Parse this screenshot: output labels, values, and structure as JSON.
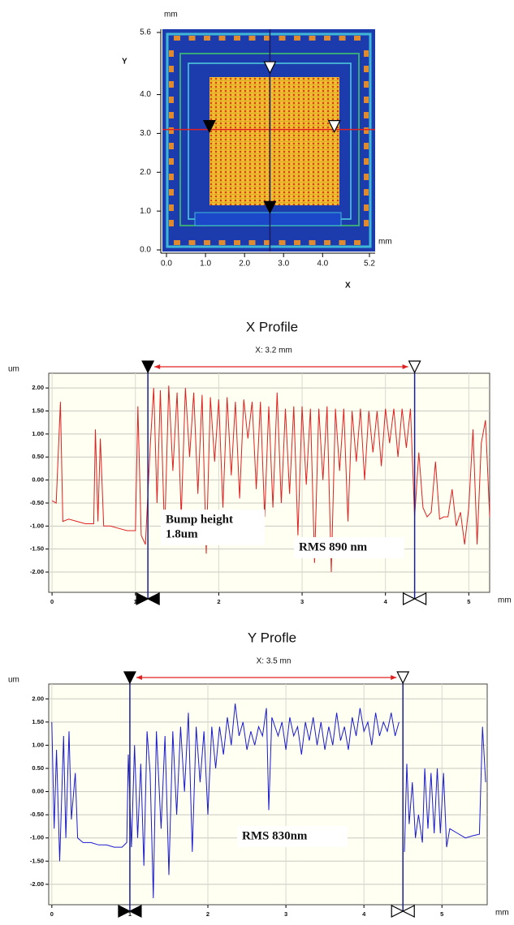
{
  "chart_data": [
    {
      "type": "image",
      "y_unit": "mm",
      "y_label": "Y",
      "x_unit": "mm",
      "x_label": "X",
      "xlim": [
        0,
        5.2
      ],
      "ylim": [
        0,
        5.6
      ],
      "xticks": [
        {
          "value": 0,
          "label": "0.0"
        },
        {
          "value": 1,
          "label": "1.0"
        },
        {
          "value": 2,
          "label": "2.0"
        },
        {
          "value": 3,
          "label": "3.0"
        },
        {
          "value": 4,
          "label": "4.0"
        },
        {
          "value": 5.2,
          "label": "5.2"
        }
      ],
      "yticks": [
        {
          "value": 0,
          "label": "0.0"
        },
        {
          "value": 1,
          "label": "1.0"
        },
        {
          "value": 2,
          "label": "2.0"
        },
        {
          "value": 3,
          "label": "3.0"
        },
        {
          "value": 4,
          "label": "4.0"
        },
        {
          "value": 5.6,
          "label": "5.6"
        }
      ],
      "crosshair_x": 2.65,
      "crosshair_y": 3.1,
      "cursor_x": [
        1.1,
        4.3
      ],
      "cursor_y": [
        1.1,
        4.7
      ]
    },
    {
      "type": "line",
      "title": "X Profile",
      "annotation": "X: 3.2 mm",
      "y_unit": "um",
      "x_unit": "mm",
      "xlim": [
        -0.04,
        5.25
      ],
      "ylim": [
        -2.44,
        2.32
      ],
      "xticks": [
        0,
        1,
        2,
        3,
        4,
        5
      ],
      "yticks": [
        {
          "value": 2,
          "label": "2.00"
        },
        {
          "value": 1.5,
          "label": "1.50"
        },
        {
          "value": 1,
          "label": "1.00"
        },
        {
          "value": 0.5,
          "label": "0.50"
        },
        {
          "value": 0,
          "label": "0.00"
        },
        {
          "value": -0.5,
          "label": "-0.50"
        },
        {
          "value": -1,
          "label": "-1.00"
        },
        {
          "value": -1.5,
          "label": "-1.50"
        },
        {
          "value": -2,
          "label": "-2.00"
        }
      ],
      "grid": true,
      "cursors": [
        1.15,
        4.35
      ],
      "text_boxes": [
        {
          "lines": [
            "Bump height",
            "1.8um"
          ]
        },
        {
          "lines": [
            "RMS 890 nm"
          ]
        }
      ],
      "x": [
        0,
        0.05,
        0.1,
        0.13,
        0.2,
        0.3,
        0.4,
        0.5,
        0.52,
        0.55,
        0.58,
        0.62,
        0.7,
        0.8,
        0.9,
        1,
        1.03,
        1.07,
        1.12,
        1.18,
        1.22,
        1.26,
        1.3,
        1.35,
        1.4,
        1.45,
        1.5,
        1.55,
        1.6,
        1.65,
        1.7,
        1.75,
        1.8,
        1.85,
        1.9,
        1.95,
        2,
        2.05,
        2.1,
        2.15,
        2.2,
        2.25,
        2.3,
        2.35,
        2.4,
        2.45,
        2.5,
        2.55,
        2.6,
        2.65,
        2.7,
        2.75,
        2.8,
        2.85,
        2.9,
        2.95,
        3,
        3.05,
        3.1,
        3.15,
        3.2,
        3.25,
        3.3,
        3.35,
        3.4,
        3.45,
        3.5,
        3.55,
        3.6,
        3.65,
        3.7,
        3.75,
        3.8,
        3.85,
        3.9,
        3.95,
        4,
        4.05,
        4.1,
        4.15,
        4.2,
        4.25,
        4.3,
        4.35,
        4.4,
        4.45,
        4.5,
        4.55,
        4.6,
        4.65,
        4.7,
        4.75,
        4.8,
        4.85,
        4.9,
        4.95,
        5,
        5.05,
        5.1,
        5.15,
        5.2,
        5.25
      ],
      "series": [
        {
          "color": "#e02020",
          "values": [
            -0.45,
            -0.5,
            1.7,
            -0.9,
            -0.85,
            -0.9,
            -0.95,
            -0.95,
            1.1,
            -0.9,
            0.9,
            -1,
            -1,
            -1.05,
            -1.1,
            -1.1,
            1.6,
            -1.2,
            -1.4,
            0.8,
            2,
            -0.5,
            1.95,
            -1.2,
            2.05,
            0.2,
            1.9,
            -0.8,
            2,
            0.5,
            1.9,
            -0.3,
            1.85,
            -1.6,
            1.8,
            0.4,
            1.75,
            -0.6,
            1.8,
            0.1,
            1.7,
            -0.4,
            1.75,
            0.9,
            1.7,
            -0.2,
            1.7,
            -0.8,
            1.6,
            -0.6,
            1.9,
            -0.5,
            1.55,
            -0.3,
            1.6,
            -1.2,
            1.6,
            -0.1,
            1.55,
            -1.8,
            1.55,
            0,
            1.6,
            -2,
            1.55,
            0.2,
            1.55,
            -0.9,
            1.5,
            0.4,
            1.55,
            0,
            1.5,
            0.6,
            1.5,
            0.3,
            1.55,
            0.8,
            1.55,
            0.5,
            1.55,
            0.7,
            1.55,
            -0.8,
            0.6,
            -0.6,
            -0.8,
            -0.7,
            0.4,
            -0.85,
            -0.8,
            -0.8,
            -0.2,
            -1,
            -0.7,
            -1.4,
            -0.6,
            1.1,
            -1.4,
            0.8,
            1.3,
            -0.8
          ]
        }
      ]
    },
    {
      "type": "line",
      "title": "Y Profle",
      "annotation": "X: 3.5 mn",
      "y_unit": "um",
      "x_unit": "mm",
      "xlim": [
        -0.04,
        5.58
      ],
      "ylim": [
        -2.44,
        2.32
      ],
      "xticks": [
        0,
        1,
        2,
        3,
        4,
        5
      ],
      "yticks": [
        {
          "value": 2,
          "label": "2.00"
        },
        {
          "value": 1.5,
          "label": "1.50"
        },
        {
          "value": 1,
          "label": "1.00"
        },
        {
          "value": 0.5,
          "label": "0.50"
        },
        {
          "value": 0,
          "label": "0.00"
        },
        {
          "value": -0.5,
          "label": "-0.50"
        },
        {
          "value": -1,
          "label": "-1.00"
        },
        {
          "value": -1.5,
          "label": "-1.50"
        },
        {
          "value": -2,
          "label": "-2.00"
        }
      ],
      "grid": true,
      "cursors": [
        1.0,
        4.5
      ],
      "text_boxes": [
        {
          "lines": [
            "RMS 830nm"
          ]
        }
      ],
      "x": [
        0,
        0.03,
        0.06,
        0.1,
        0.15,
        0.18,
        0.22,
        0.25,
        0.3,
        0.33,
        0.4,
        0.5,
        0.6,
        0.7,
        0.8,
        0.9,
        0.96,
        0.98,
        1.02,
        1.06,
        1.1,
        1.14,
        1.18,
        1.22,
        1.26,
        1.3,
        1.34,
        1.4,
        1.45,
        1.5,
        1.55,
        1.6,
        1.65,
        1.7,
        1.75,
        1.8,
        1.85,
        1.9,
        1.95,
        2,
        2.05,
        2.1,
        2.15,
        2.2,
        2.25,
        2.3,
        2.35,
        2.4,
        2.45,
        2.5,
        2.55,
        2.6,
        2.65,
        2.7,
        2.75,
        2.78,
        2.82,
        2.9,
        2.95,
        3,
        3.05,
        3.1,
        3.15,
        3.2,
        3.25,
        3.3,
        3.35,
        3.4,
        3.45,
        3.5,
        3.55,
        3.6,
        3.65,
        3.7,
        3.75,
        3.8,
        3.85,
        3.9,
        3.95,
        4,
        4.05,
        4.1,
        4.15,
        4.2,
        4.25,
        4.3,
        4.35,
        4.4,
        4.45,
        4.5,
        4.52,
        4.55,
        4.58,
        4.62,
        4.66,
        4.7,
        4.75,
        4.78,
        4.82,
        4.86,
        4.9,
        4.94,
        4.98,
        5.02,
        5.06,
        5.1,
        5.2,
        5.3,
        5.4,
        5.48,
        5.52,
        5.56
      ],
      "series": [
        {
          "color": "#1a1ad0",
          "values": [
            1.5,
            -0.8,
            0.9,
            -1.5,
            1.2,
            -1,
            1.3,
            -0.6,
            0.4,
            -1,
            -1.1,
            -1.1,
            -1.15,
            -1.15,
            -1.2,
            -1.2,
            -1.1,
            0.8,
            -1.2,
            1,
            -1,
            0.6,
            -1.6,
            1.3,
            0.4,
            -2.3,
            1.3,
            -0.8,
            1.2,
            -1.8,
            1.3,
            -0.5,
            1.4,
            0,
            1.7,
            -1.3,
            1.4,
            0.2,
            1.3,
            -0.5,
            1.4,
            0.5,
            1.4,
            0.8,
            1.6,
            1,
            1.9,
            1.2,
            1.5,
            0.9,
            1.3,
            1,
            1.4,
            1.2,
            1.8,
            -0.4,
            1.6,
            1.2,
            1.5,
            0.9,
            1.6,
            1.2,
            1.4,
            0.8,
            1.5,
            1.1,
            1.6,
            1,
            1.5,
            0.9,
            1.4,
            1,
            1.7,
            1.1,
            1.4,
            0.9,
            1.6,
            1.2,
            1.8,
            1.3,
            1.5,
            1,
            1.7,
            1.2,
            1.5,
            1.3,
            1.7,
            1.2,
            1.5,
            null,
            -1.3,
            0.6,
            -0.7,
            0.2,
            -1,
            -0.5,
            -1.1,
            0.5,
            -0.8,
            0.4,
            -0.9,
            0.5,
            -0.9,
            0.4,
            -1.2,
            -0.8,
            -0.9,
            -1,
            -0.95,
            -0.92,
            1.4,
            0.2
          ]
        }
      ]
    }
  ]
}
